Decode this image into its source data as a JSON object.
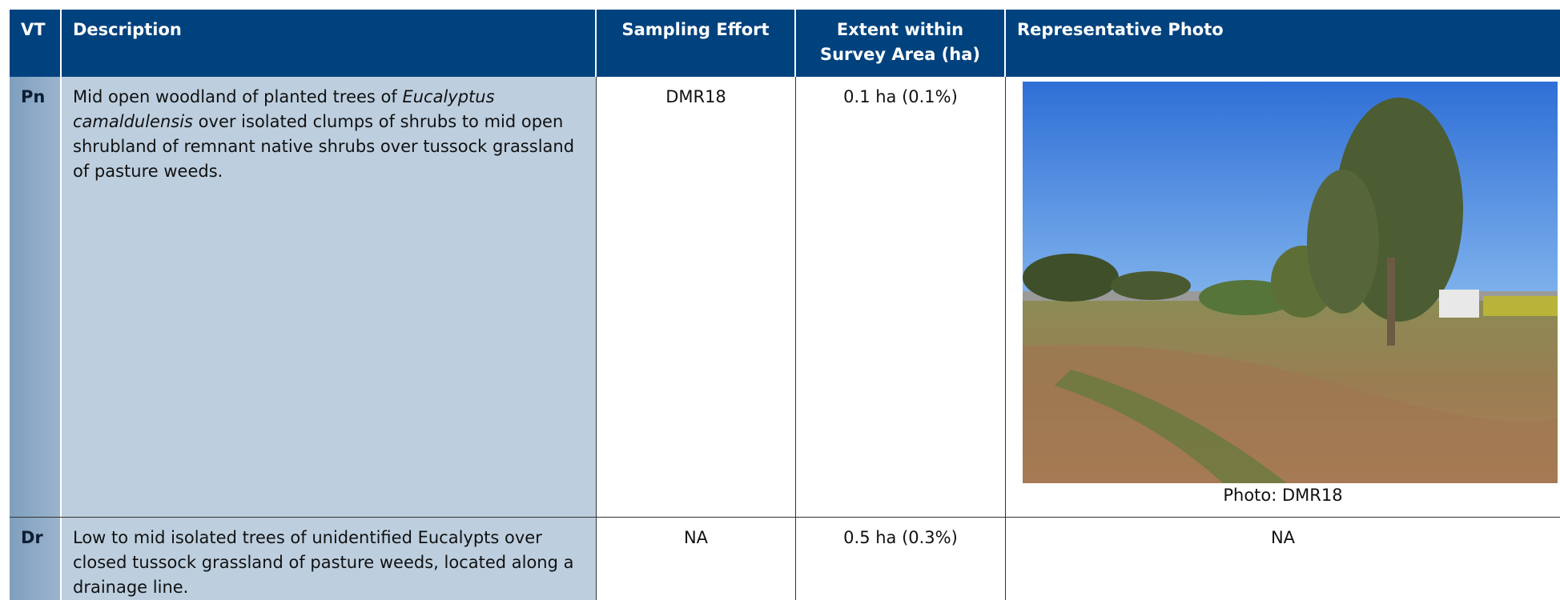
{
  "table": {
    "headers": [
      "VT",
      "Description",
      "Sampling Effort",
      "Extent within Survey Area (ha)",
      "Representative Photo"
    ],
    "rows": [
      {
        "vt": "Pn",
        "description": [
          "Mid open woodland of planted trees of ",
          "Eucalyptus camaldulensis",
          " over isolated clumps of shrubs to mid open shrubland of remnant native shrubs over tussock grassland of pasture weeds."
        ],
        "sampling_effort": "DMR18",
        "extent": "0.1 ha (0.1%)",
        "photo": "Photo: DMR18"
      },
      {
        "vt": "Dr",
        "description": [
          "Low to mid isolated trees of unidentified Eucalypts over closed tussock grassland of pasture weeds, located along a drainage line."
        ],
        "sampling_effort": "NA",
        "extent": "0.5 ha (0.3%)",
        "photo": "NA"
      }
    ]
  }
}
